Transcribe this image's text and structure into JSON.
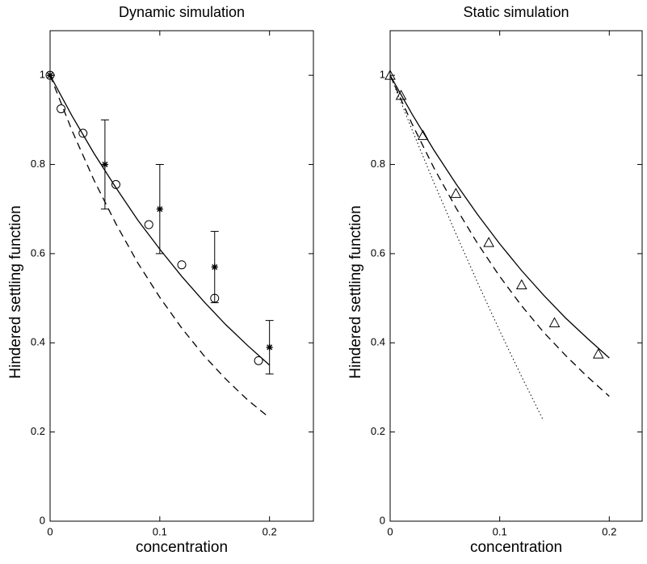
{
  "chart_data": [
    {
      "type": "line",
      "title": "Dynamic simulation",
      "xlabel": "concentration",
      "ylabel": "Hindered settling function",
      "xlim": [
        0,
        0.24
      ],
      "ylim": [
        0,
        1.1
      ],
      "xticks": [
        0,
        0.1,
        0.2
      ],
      "yticks": [
        0,
        0.2,
        0.4,
        0.6,
        0.8,
        1
      ],
      "series": [
        {
          "style": "solid",
          "color": "#000000",
          "x": [
            0,
            0.02,
            0.04,
            0.06,
            0.08,
            0.1,
            0.12,
            0.14,
            0.16,
            0.18,
            0.2
          ],
          "values": [
            1,
            0.909,
            0.825,
            0.748,
            0.675,
            0.61,
            0.549,
            0.493,
            0.441,
            0.394,
            0.35
          ]
        },
        {
          "style": "dashed",
          "color": "#000000",
          "x": [
            0,
            0.02,
            0.04,
            0.06,
            0.08,
            0.1,
            0.12,
            0.14,
            0.16,
            0.18,
            0.2
          ],
          "values": [
            1,
            0.876,
            0.765,
            0.667,
            0.579,
            0.502,
            0.433,
            0.372,
            0.319,
            0.272,
            0.232
          ]
        },
        {
          "style": "none",
          "marker": "circle",
          "color": "#000000",
          "x": [
            0,
            0.01,
            0.03,
            0.06,
            0.09,
            0.12,
            0.15,
            0.19
          ],
          "values": [
            1,
            0.925,
            0.87,
            0.755,
            0.665,
            0.575,
            0.5,
            0.36
          ]
        },
        {
          "style": "none",
          "marker": "star",
          "color": "#000000",
          "x": [
            0,
            0.05,
            0.1,
            0.15,
            0.2
          ],
          "values": [
            1,
            0.8,
            0.7,
            0.57,
            0.39
          ],
          "errors": [
            0,
            0.1,
            0.1,
            0.08,
            0.06
          ]
        }
      ]
    },
    {
      "type": "line",
      "title": "Static simulation",
      "xlabel": "concentration",
      "ylabel": "Hindered settling function",
      "xlim": [
        0,
        0.23
      ],
      "ylim": [
        0,
        1.1
      ],
      "xticks": [
        0,
        0.1,
        0.2
      ],
      "yticks": [
        0,
        0.2,
        0.4,
        0.6,
        0.8,
        1
      ],
      "series": [
        {
          "style": "solid",
          "color": "#000000",
          "x": [
            0,
            0.02,
            0.04,
            0.06,
            0.08,
            0.1,
            0.12,
            0.14,
            0.16,
            0.18,
            0.2
          ],
          "values": [
            1,
            0.913,
            0.832,
            0.757,
            0.687,
            0.622,
            0.562,
            0.507,
            0.456,
            0.41,
            0.366
          ]
        },
        {
          "style": "dashed",
          "color": "#000000",
          "x": [
            0,
            0.02,
            0.04,
            0.06,
            0.08,
            0.1,
            0.12,
            0.14,
            0.16,
            0.18,
            0.2
          ],
          "values": [
            1,
            0.891,
            0.792,
            0.703,
            0.622,
            0.549,
            0.483,
            0.424,
            0.372,
            0.324,
            0.28
          ]
        },
        {
          "style": "dotted",
          "color": "#000000",
          "x": [
            0,
            0.02,
            0.04,
            0.06,
            0.08,
            0.1,
            0.12,
            0.14
          ],
          "values": [
            1,
            0.878,
            0.759,
            0.645,
            0.534,
            0.427,
            0.324,
            0.225
          ]
        },
        {
          "style": "none",
          "marker": "triangle",
          "color": "#000000",
          "x": [
            0,
            0.01,
            0.03,
            0.06,
            0.09,
            0.12,
            0.15,
            0.19
          ],
          "values": [
            1,
            0.955,
            0.865,
            0.735,
            0.625,
            0.53,
            0.445,
            0.375
          ]
        }
      ]
    }
  ]
}
